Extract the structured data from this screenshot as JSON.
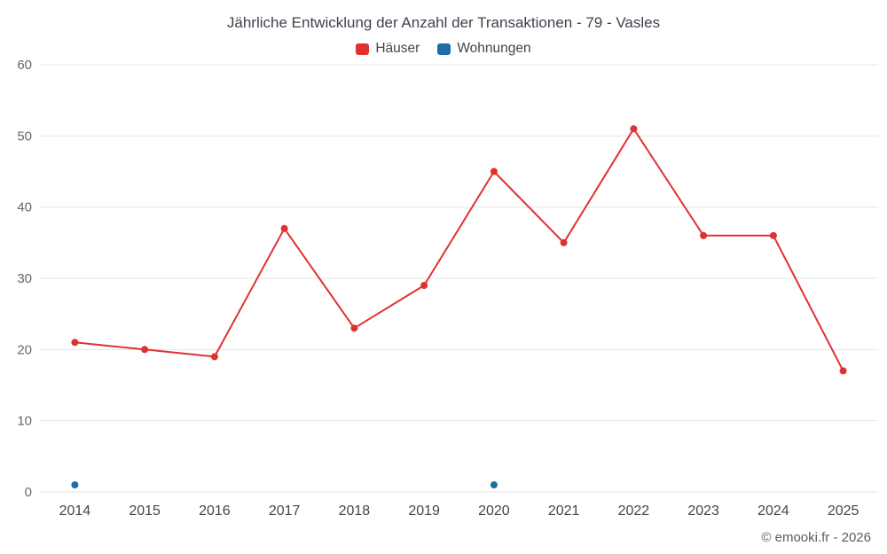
{
  "title": "Jährliche Entwicklung der Anzahl der Transaktionen - 79 - Vasles",
  "legend": [
    {
      "label": "Häuser",
      "color": "#e03131"
    },
    {
      "label": "Wohnungen",
      "color": "#1c6ea4"
    }
  ],
  "footer": "© emooki.fr - 2026",
  "chart_data": {
    "type": "line",
    "title": "Jährliche Entwicklung der Anzahl der Transaktionen - 79 - Vasles",
    "categories": [
      "2014",
      "2015",
      "2016",
      "2017",
      "2018",
      "2019",
      "2020",
      "2021",
      "2022",
      "2023",
      "2024",
      "2025"
    ],
    "series": [
      {
        "name": "Häuser",
        "key": "haeuser",
        "color": "#e03131",
        "values": [
          21,
          20,
          19,
          37,
          23,
          29,
          45,
          35,
          51,
          36,
          36,
          17
        ]
      },
      {
        "name": "Wohnungen",
        "key": "wohnungen",
        "color": "#1c6ea4",
        "values": [
          1,
          null,
          null,
          null,
          null,
          null,
          1,
          null,
          null,
          null,
          null,
          null
        ]
      }
    ],
    "xlabel": "",
    "ylabel": "",
    "ylim": [
      0,
      60
    ],
    "yticks": [
      0,
      10,
      20,
      30,
      40,
      50,
      60
    ],
    "grid": true,
    "legend_position": "top"
  }
}
